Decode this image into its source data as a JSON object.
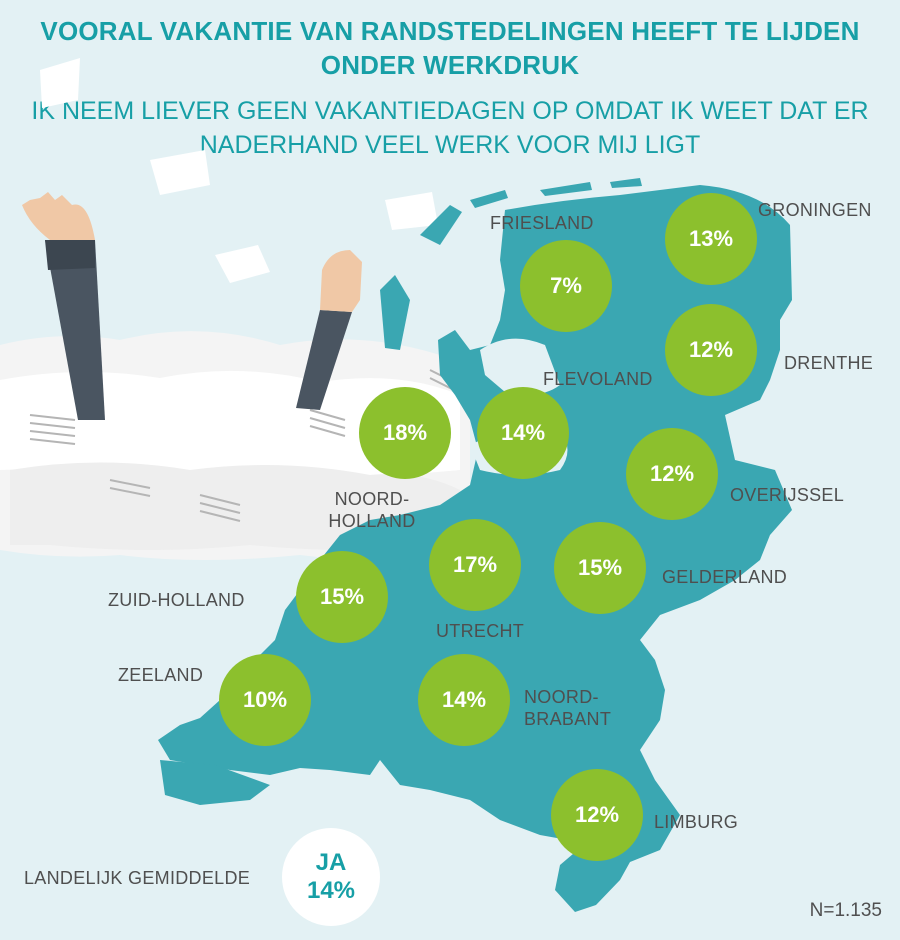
{
  "title": "VOORAL VAKANTIE VAN RANDSTEDELINGEN HEEFT TE LIJDEN ONDER WERKDRUK",
  "subtitle": "IK NEEM LIEVER GEEN VAKANTIEDAGEN OP OMDAT IK WEET DAT ER NADERHAND VEEL WERK VOOR MIJ LIGT",
  "colors": {
    "map": "#3aa7b2",
    "bubble": "#8cc02d",
    "title": "#179fa6",
    "background": "#e3f1f4"
  },
  "chart_data": {
    "type": "map",
    "unit": "%",
    "regions": [
      {
        "name": "GRONINGEN",
        "value": 13
      },
      {
        "name": "FRIESLAND",
        "value": 7
      },
      {
        "name": "DRENTHE",
        "value": 12
      },
      {
        "name": "FLEVOLAND",
        "value": 14
      },
      {
        "name": "NOORD-HOLLAND",
        "value": 18
      },
      {
        "name": "OVERIJSSEL",
        "value": 12
      },
      {
        "name": "UTRECHT",
        "value": 17
      },
      {
        "name": "GELDERLAND",
        "value": 15
      },
      {
        "name": "ZUID-HOLLAND",
        "value": 15
      },
      {
        "name": "ZEELAND",
        "value": 10
      },
      {
        "name": "NOORD-BRABANT",
        "value": 14
      },
      {
        "name": "LIMBURG",
        "value": 12
      }
    ]
  },
  "average": {
    "label": "LANDELIJK GEMIDDELDE",
    "answer": "JA",
    "value_text": "14%"
  },
  "sample": "N=1.135"
}
